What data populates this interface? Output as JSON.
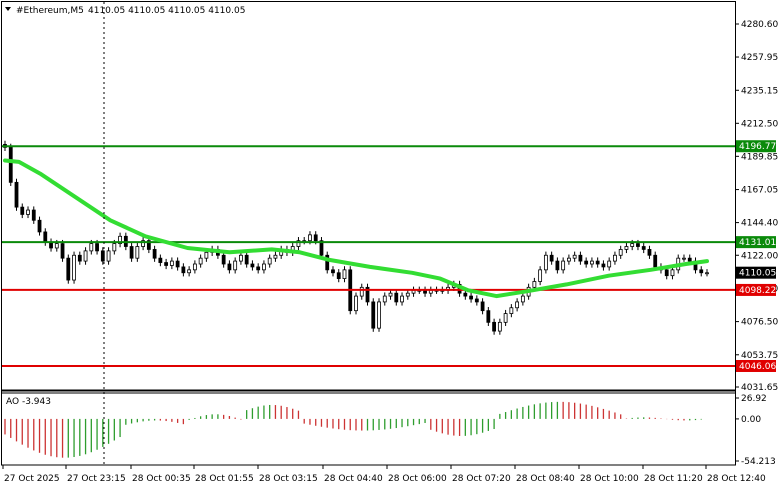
{
  "header": {
    "symbol_timeframe": "#Ethereum,M5",
    "ohlc": "4110.05 4110.05 4110.05 4110.05"
  },
  "price_axis": {
    "ticks": [
      "4280.60",
      "4257.95",
      "4235.15",
      "4212.50",
      "4189.85",
      "4167.05",
      "4144.40",
      "4122.00",
      "4099.20",
      "4076.50",
      "4053.75",
      "4031.65"
    ]
  },
  "horizontal_lines": [
    {
      "name": "resistance-upper",
      "value": 4196.77,
      "label": "4196.77",
      "color": "#0a8a0a"
    },
    {
      "name": "resistance-lower",
      "value": 4131.01,
      "label": "4131.01",
      "color": "#0a8a0a"
    },
    {
      "name": "support-upper",
      "value": 4098.22,
      "label": "4098.22",
      "color": "#e00000"
    },
    {
      "name": "support-lower",
      "value": 4046.06,
      "label": "4046.06",
      "color": "#e00000"
    }
  ],
  "current_price_label": "4110.05",
  "ao_panel": {
    "title": "AO -3.943",
    "ticks": [
      "26.92",
      "0.00",
      "-54.213"
    ]
  },
  "time_axis": {
    "labels": [
      "27 Oct 2025",
      "27 Oct 23:15",
      "28 Oct 00:35",
      "28 Oct 01:55",
      "28 Oct 03:15",
      "28 Oct 04:40",
      "28 Oct 06:00",
      "28 Oct 07:20",
      "28 Oct 08:40",
      "28 Oct 10:00",
      "28 Oct 11:20",
      "28 Oct 12:40"
    ]
  },
  "colors": {
    "ma_line": "#33dd33",
    "candle": "#000000",
    "ao_up": "#2e9d2e",
    "ao_down": "#cc3333",
    "crosshair": "#000000"
  }
}
